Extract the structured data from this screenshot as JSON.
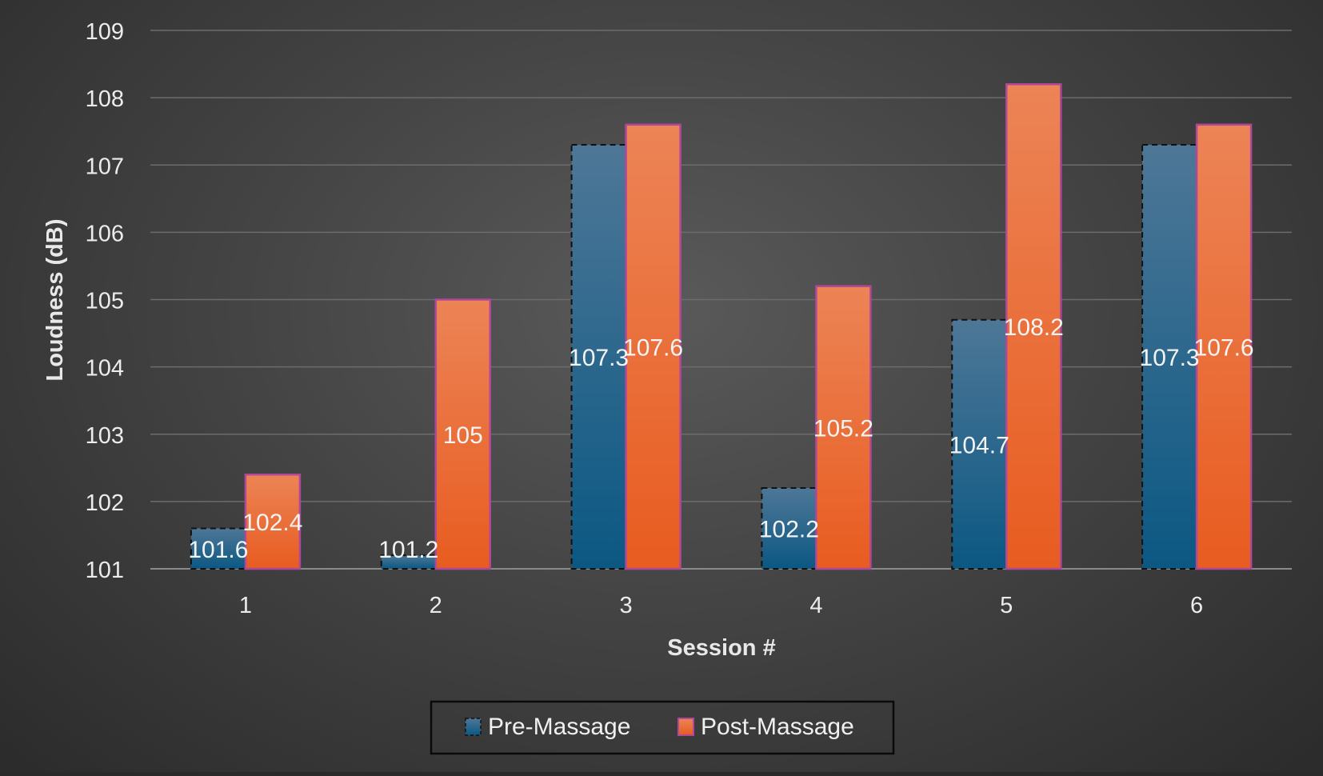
{
  "chart_data": {
    "type": "bar",
    "title": "",
    "xlabel": "Session #",
    "ylabel": "Loudness (dB)",
    "categories": [
      "1",
      "2",
      "3",
      "4",
      "5",
      "6"
    ],
    "ylim": [
      101,
      109
    ],
    "yticks": [
      "101",
      "102",
      "103",
      "104",
      "105",
      "106",
      "107",
      "108",
      "109"
    ],
    "grid": true,
    "legend_position": "bottom-center",
    "series": [
      {
        "name": "Pre-Massage",
        "values": [
          101.6,
          101.2,
          107.3,
          102.2,
          104.7,
          107.3
        ],
        "labels": [
          "101.6",
          "101.2",
          "107.3",
          "102.2",
          "104.7",
          "107.3"
        ],
        "color_top": "#4e7797",
        "color_bottom": "#0b5883",
        "border": "#111111",
        "border_style": "dashed"
      },
      {
        "name": "Post-Massage",
        "values": [
          102.4,
          105,
          107.6,
          105.2,
          108.2,
          107.6
        ],
        "labels": [
          "102.4",
          "105",
          "107.6",
          "105.2",
          "108.2",
          "107.6"
        ],
        "color_top": "#ec8456",
        "color_bottom": "#e85c20",
        "border": "#b0489a",
        "border_style": "solid"
      }
    ]
  }
}
